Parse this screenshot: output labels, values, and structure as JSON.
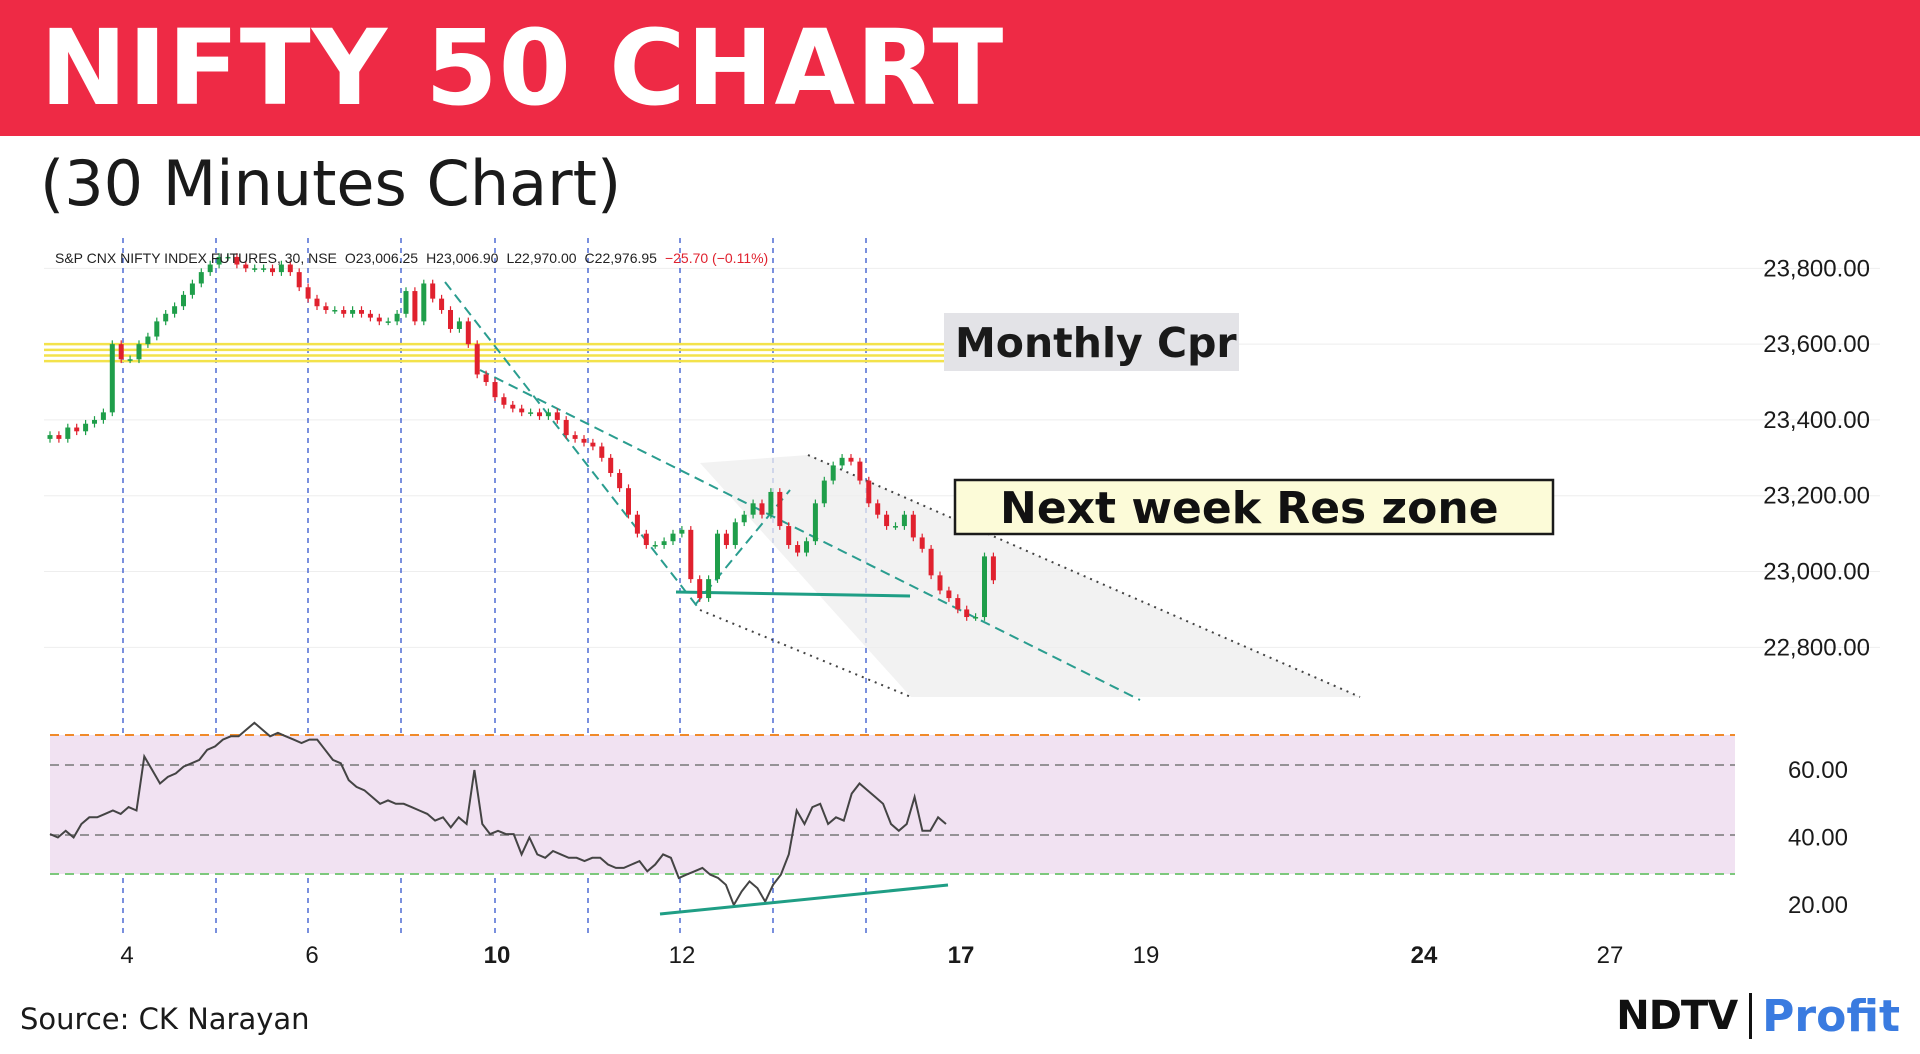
{
  "header": {
    "title": "NIFTY 50 CHART",
    "subtitle": "(30 Minutes Chart)"
  },
  "footer": {
    "source": "Source: CK Narayan",
    "logo_left": "NDTV",
    "logo_right": "Profit"
  },
  "colors": {
    "banner": "#ee2a45",
    "up": "#1f9e4a",
    "down": "#e0212e",
    "trend": "#2a9d8f",
    "rsi_band": "#f1e2f2",
    "cpr": "#f3e24b",
    "grid_vline": "#3355cc",
    "overbought": "#f08a2a",
    "oversold": "#7dc87d"
  },
  "chart_data": [
    {
      "type": "candlestick",
      "title": "",
      "symbol_line": {
        "symbol": "S&P CNX NIFTY INDEX FUTURES, 30, NSE",
        "open": "O23,006.25",
        "high": "H23,006.90",
        "low": "L22,970.00",
        "close": "C22,976.95",
        "change": "−25.70 (−0.11%)"
      },
      "y_ticks": [
        "23,800.00",
        "23,600.00",
        "23,400.00",
        "23,200.00",
        "23,000.00",
        "22,800.00"
      ],
      "y_tick_values": [
        23800,
        23600,
        23400,
        23200,
        23000,
        22800
      ],
      "ylim": [
        22640,
        23880
      ],
      "x_ticks": [
        "4",
        "6",
        "10",
        "12",
        "17",
        "19",
        "24",
        "27"
      ],
      "x_ticks_bold": [
        "10",
        "17",
        "24"
      ],
      "closes": [
        23360,
        23350,
        23380,
        23370,
        23390,
        23400,
        23420,
        23600,
        23560,
        23560,
        23600,
        23620,
        23660,
        23680,
        23700,
        23730,
        23760,
        23790,
        23810,
        23830,
        23830,
        23810,
        23800,
        23800,
        23800,
        23790,
        23810,
        23790,
        23750,
        23720,
        23700,
        23690,
        23690,
        23680,
        23690,
        23680,
        23670,
        23660,
        23660,
        23680,
        23740,
        23660,
        23760,
        23720,
        23690,
        23640,
        23660,
        23600,
        23520,
        23500,
        23460,
        23440,
        23430,
        23420,
        23420,
        23410,
        23420,
        23400,
        23360,
        23350,
        23340,
        23330,
        23300,
        23260,
        23220,
        23150,
        23100,
        23070,
        23070,
        23080,
        23100,
        23110,
        22980,
        22930,
        22980,
        23100,
        23070,
        23130,
        23150,
        23180,
        23150,
        23210,
        23120,
        23070,
        23050,
        23080,
        23180,
        23240,
        23280,
        23300,
        23290,
        23240,
        23180,
        23150,
        23120,
        23120,
        23150,
        23090,
        23060,
        22990,
        22950,
        22930,
        22900,
        22880,
        22880,
        23040,
        22977
      ],
      "resistance_label": "Next week Res zone",
      "cpr_label": "Monthly Cpr",
      "cpr_levels": [
        23600,
        23585,
        23570,
        23555
      ]
    },
    {
      "type": "line",
      "title": "",
      "series_name": "",
      "y_ticks": [
        "60.00",
        "40.00",
        "20.00"
      ],
      "y_tick_values": [
        60,
        40,
        20
      ],
      "ylim": [
        15,
        75
      ],
      "overbought": 70,
      "oversold": 30,
      "midline": 40,
      "values": [
        41,
        40,
        42,
        40,
        44,
        46,
        46,
        47,
        48,
        47,
        49,
        48,
        64,
        60,
        56,
        58,
        59,
        61,
        62,
        63,
        66,
        67,
        69,
        70,
        70,
        72,
        74,
        72,
        70,
        71,
        70,
        69,
        68,
        69,
        69,
        66,
        63,
        62,
        57,
        55,
        54,
        52,
        50,
        51,
        50,
        50,
        49,
        48,
        47,
        45,
        46,
        43,
        46,
        44,
        60,
        44,
        41,
        42,
        41,
        41,
        35,
        40,
        35,
        34,
        36,
        35,
        34,
        34,
        33,
        34,
        34,
        32,
        31,
        31,
        32,
        33,
        30,
        32,
        35,
        34,
        28,
        29,
        30,
        31,
        29,
        28,
        26,
        20,
        24,
        27,
        25,
        21,
        26,
        29,
        35,
        48,
        44,
        49,
        50,
        44,
        46,
        45,
        53,
        56,
        54,
        52,
        50,
        44,
        42,
        44,
        52,
        42,
        42,
        46,
        44
      ]
    }
  ]
}
